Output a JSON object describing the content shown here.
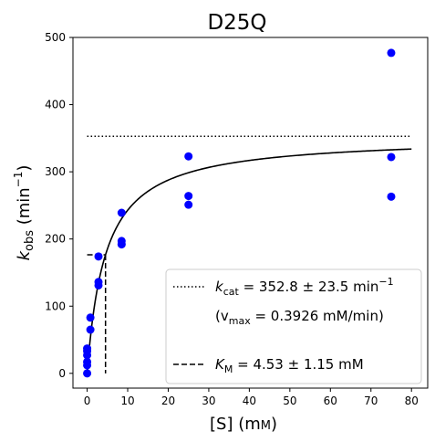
{
  "chart_data": {
    "type": "scatter",
    "title": "D25Q",
    "xlabel": "[S] (mM)",
    "ylabel": "k_obs (min⁻¹)",
    "xlim": [
      -3.5,
      84
    ],
    "ylim": [
      -22,
      500
    ],
    "x_ticks": [
      0,
      10,
      20,
      30,
      40,
      50,
      60,
      70,
      80
    ],
    "y_ticks": [
      0,
      100,
      200,
      300,
      400,
      500
    ],
    "points_color": "#0000ff",
    "points": [
      {
        "x": 0,
        "y": 0
      },
      {
        "x": 0,
        "y": 12
      },
      {
        "x": 0,
        "y": 17
      },
      {
        "x": 0,
        "y": 27
      },
      {
        "x": 0,
        "y": 33
      },
      {
        "x": 0,
        "y": 37
      },
      {
        "x": 0.8,
        "y": 65
      },
      {
        "x": 0.8,
        "y": 83
      },
      {
        "x": 2.8,
        "y": 131
      },
      {
        "x": 2.8,
        "y": 136
      },
      {
        "x": 2.8,
        "y": 174
      },
      {
        "x": 8.5,
        "y": 192
      },
      {
        "x": 8.5,
        "y": 197
      },
      {
        "x": 8.5,
        "y": 239
      },
      {
        "x": 25,
        "y": 251
      },
      {
        "x": 25,
        "y": 264
      },
      {
        "x": 25,
        "y": 323
      },
      {
        "x": 75,
        "y": 263
      },
      {
        "x": 75,
        "y": 322
      },
      {
        "x": 75,
        "y": 477
      }
    ],
    "fit": {
      "kcat": 352.8,
      "km": 4.53,
      "x_range": [
        0,
        80
      ]
    },
    "kcat_line": {
      "y": 352.8,
      "x_range": [
        0,
        80
      ],
      "style": "dotted"
    },
    "km_marker": {
      "x": 4.53,
      "y": 176.4,
      "style": "dashed"
    },
    "legend_position": "lower-right",
    "legend": {
      "kcat_label": "k",
      "kcat_sub": "cat",
      "kcat_value": " = 352.8 ± 23.5 min",
      "kcat_sup": "−1",
      "vmax_open": "(v",
      "vmax_sub": "max",
      "vmax_value": " = 0.3926 mM/min)",
      "km_label": "K",
      "km_sub": "M",
      "km_value": " = 4.53 ± 1.15 mM"
    }
  }
}
